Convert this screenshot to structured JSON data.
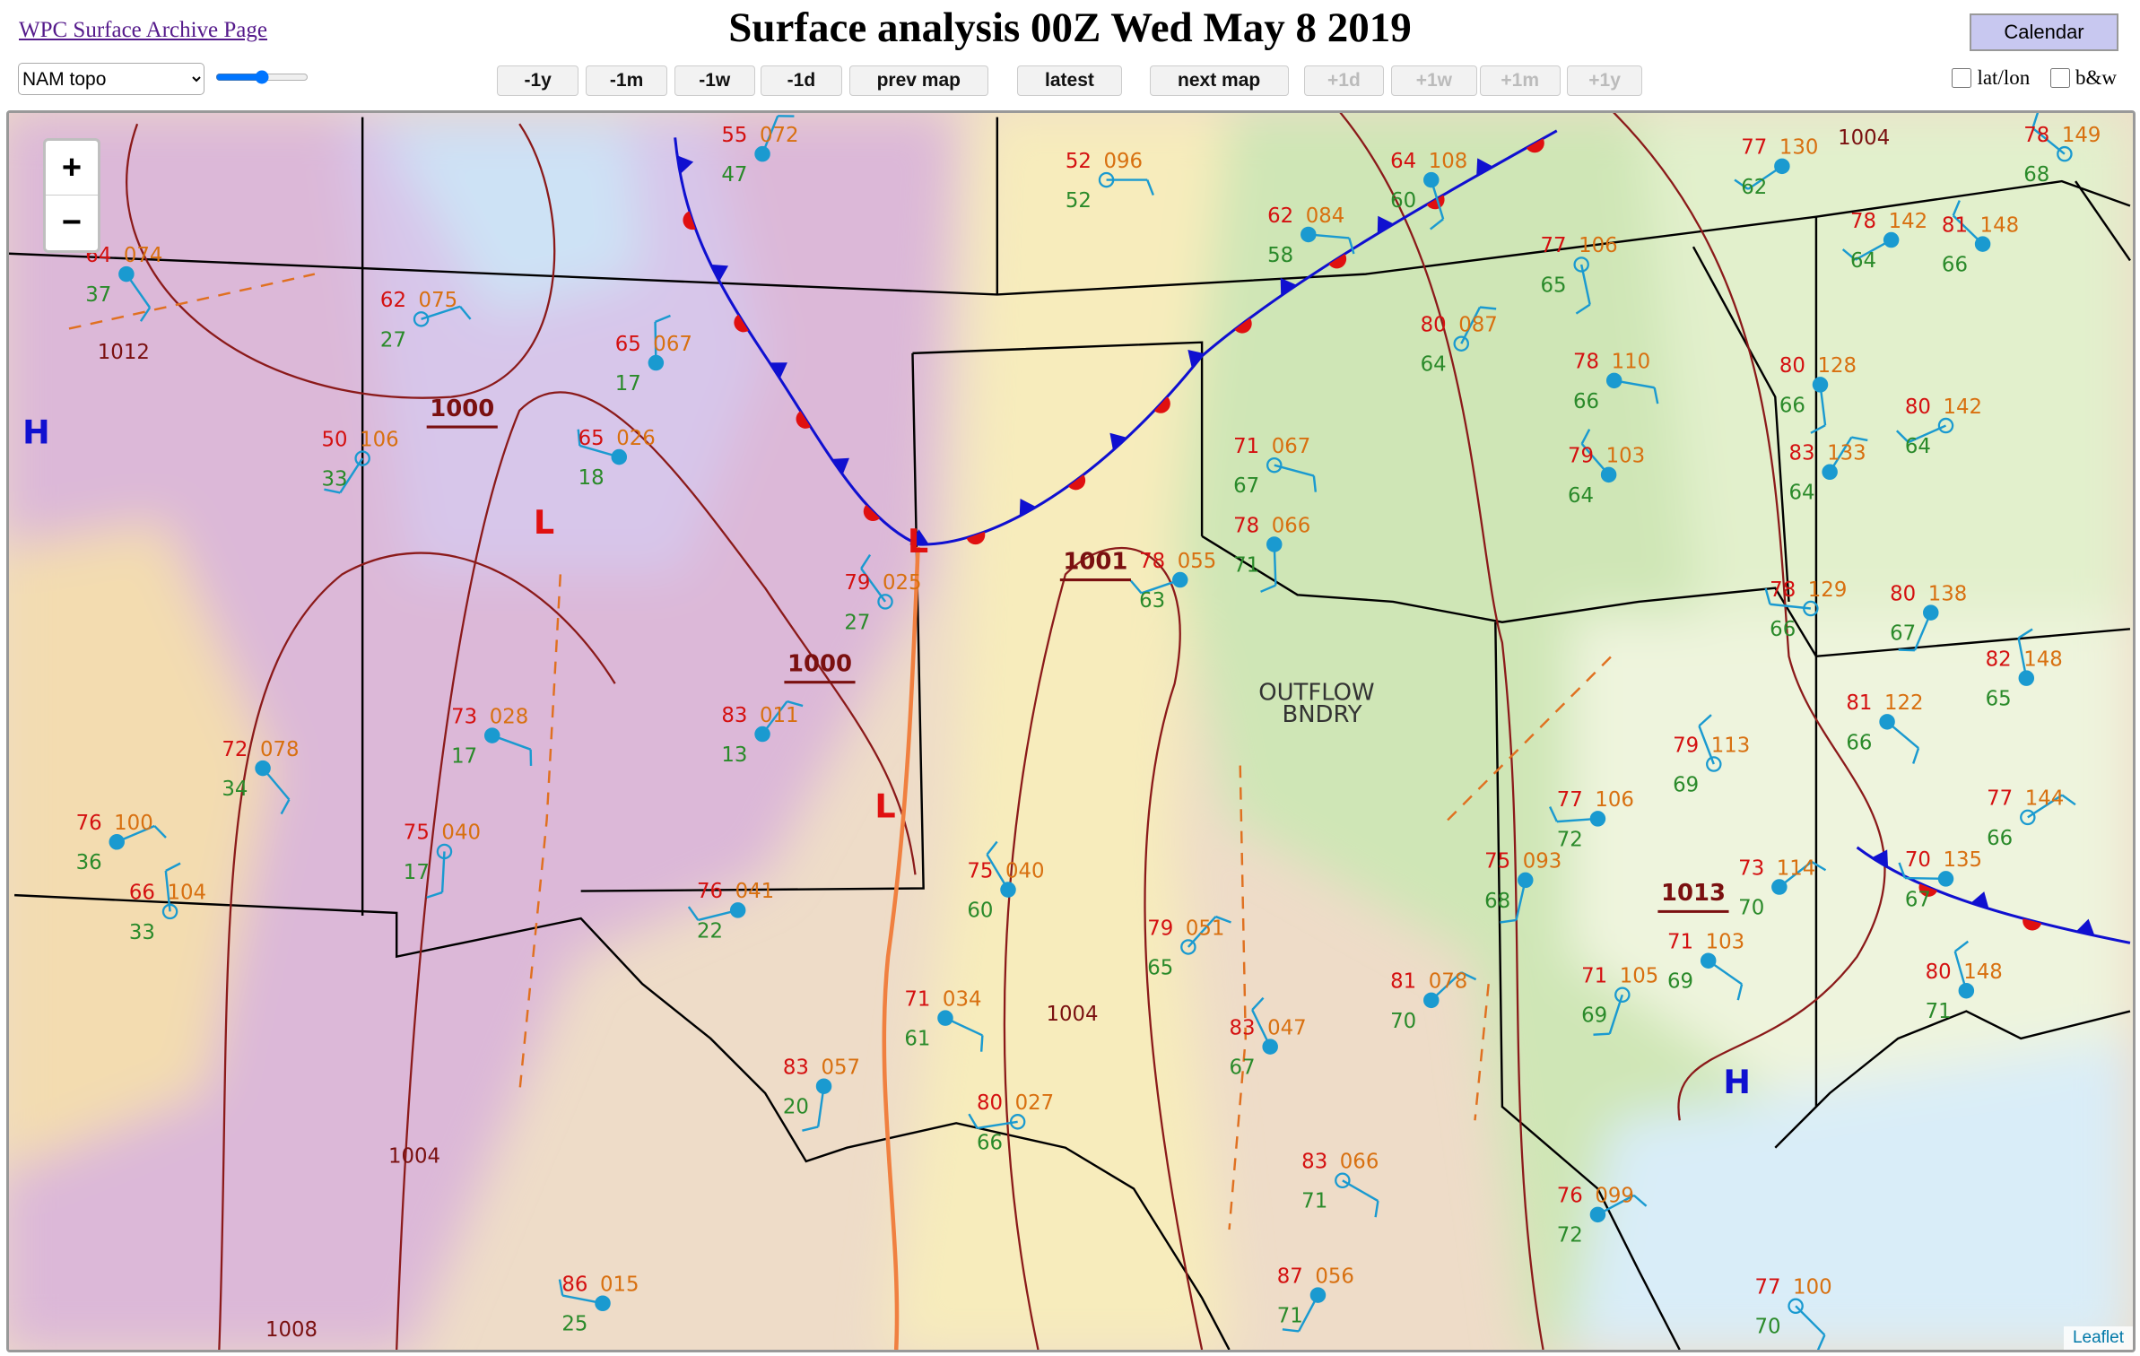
{
  "header": {
    "archive_link": "WPC Surface Archive Page",
    "title": "Surface analysis 00Z Wed May 8 2019",
    "calendar_button": "Calendar"
  },
  "toolbar": {
    "map_select": "NAM topo",
    "nav_buttons": [
      "-1y",
      "-1m",
      "-1w",
      "-1d",
      "prev map",
      "latest",
      "next map",
      "+1d",
      "+1w",
      "+1m",
      "+1y"
    ],
    "checkboxes": [
      "lat/lon",
      "b&w"
    ]
  },
  "map": {
    "zoom_in": "+",
    "zoom_out": "−",
    "attribution": "Leaflet",
    "isobar_labels": [
      "1000",
      "1000",
      "1001",
      "1013",
      "1004",
      "1004",
      "1004",
      "1012",
      "1008"
    ],
    "pressure_centers": [
      "H",
      "H",
      "L",
      "L",
      "L"
    ],
    "boundary_label": [
      "OUTFLOW",
      "BNDRY"
    ],
    "stations": [
      {
        "temp": "52",
        "pressure": "096",
        "dewpoint": "52"
      },
      {
        "temp": "64",
        "pressure": "108",
        "dewpoint": "60"
      },
      {
        "temp": "77",
        "pressure": "130",
        "dewpoint": "62"
      },
      {
        "temp": "78",
        "pressure": "149",
        "dewpoint": "68"
      },
      {
        "temp": "55",
        "pressure": "072",
        "dewpoint": "47"
      },
      {
        "temp": "62",
        "pressure": "084",
        "dewpoint": "58"
      },
      {
        "temp": "77",
        "pressure": "106",
        "dewpoint": "65"
      },
      {
        "temp": "78",
        "pressure": "142",
        "dewpoint": "64"
      },
      {
        "temp": "81",
        "pressure": "148",
        "dewpoint": "66"
      },
      {
        "temp": "80",
        "pressure": "087",
        "dewpoint": "64"
      },
      {
        "temp": "78",
        "pressure": "110",
        "dewpoint": "66"
      },
      {
        "temp": "80",
        "pressure": "128",
        "dewpoint": "66"
      },
      {
        "temp": "80",
        "pressure": "142",
        "dewpoint": "64"
      },
      {
        "temp": "79",
        "pressure": "103",
        "dewpoint": "64"
      },
      {
        "temp": "83",
        "pressure": "133",
        "dewpoint": "64"
      },
      {
        "temp": "71",
        "pressure": "067",
        "dewpoint": "67"
      },
      {
        "temp": "78",
        "pressure": "066",
        "dewpoint": "71"
      },
      {
        "temp": "78",
        "pressure": "055",
        "dewpoint": "63"
      },
      {
        "temp": "79",
        "pressure": "025",
        "dewpoint": "27"
      },
      {
        "temp": "83",
        "pressure": "011",
        "dewpoint": "13"
      },
      {
        "temp": "73",
        "pressure": "028",
        "dewpoint": "17"
      },
      {
        "temp": "75",
        "pressure": "040",
        "dewpoint": "17"
      },
      {
        "temp": "76",
        "pressure": "041",
        "dewpoint": "22"
      },
      {
        "temp": "75",
        "pressure": "040",
        "dewpoint": "60"
      },
      {
        "temp": "79",
        "pressure": "051",
        "dewpoint": "65"
      },
      {
        "temp": "71",
        "pressure": "034",
        "dewpoint": "61"
      },
      {
        "temp": "83",
        "pressure": "057",
        "dewpoint": "20"
      },
      {
        "temp": "80",
        "pressure": "027",
        "dewpoint": "66"
      },
      {
        "temp": "83",
        "pressure": "047",
        "dewpoint": "67"
      },
      {
        "temp": "81",
        "pressure": "078",
        "dewpoint": "70"
      },
      {
        "temp": "83",
        "pressure": "066",
        "dewpoint": "71"
      },
      {
        "temp": "75",
        "pressure": "093",
        "dewpoint": "68"
      },
      {
        "temp": "77",
        "pressure": "106",
        "dewpoint": "72"
      },
      {
        "temp": "79",
        "pressure": "113",
        "dewpoint": "69"
      },
      {
        "temp": "73",
        "pressure": "114",
        "dewpoint": "70"
      },
      {
        "temp": "71",
        "pressure": "103",
        "dewpoint": "69"
      },
      {
        "temp": "71",
        "pressure": "105",
        "dewpoint": "69"
      },
      {
        "temp": "70",
        "pressure": "135",
        "dewpoint": "67"
      },
      {
        "temp": "80",
        "pressure": "148",
        "dewpoint": "71"
      },
      {
        "temp": "77",
        "pressure": "144",
        "dewpoint": "66"
      },
      {
        "temp": "81",
        "pressure": "122",
        "dewpoint": "66"
      },
      {
        "temp": "80",
        "pressure": "138",
        "dewpoint": "67"
      },
      {
        "temp": "78",
        "pressure": "129",
        "dewpoint": "66"
      },
      {
        "temp": "82",
        "pressure": "148",
        "dewpoint": "65"
      },
      {
        "temp": "76",
        "pressure": "099",
        "dewpoint": "72"
      },
      {
        "temp": "77",
        "pressure": "100",
        "dewpoint": "70"
      },
      {
        "temp": "87",
        "pressure": "056",
        "dewpoint": "71"
      },
      {
        "temp": "86",
        "pressure": "015",
        "dewpoint": "25"
      },
      {
        "temp": "66",
        "pressure": "104",
        "dewpoint": "33"
      },
      {
        "temp": "76",
        "pressure": "100",
        "dewpoint": "36"
      },
      {
        "temp": "72",
        "pressure": "078",
        "dewpoint": "34"
      },
      {
        "temp": "50",
        "pressure": "106",
        "dewpoint": "33"
      },
      {
        "temp": "65",
        "pressure": "026",
        "dewpoint": "18"
      },
      {
        "temp": "65",
        "pressure": "067",
        "dewpoint": "17"
      },
      {
        "temp": "62",
        "pressure": "075",
        "dewpoint": "27"
      },
      {
        "temp": "64",
        "pressure": "074",
        "dewpoint": "37"
      }
    ]
  }
}
